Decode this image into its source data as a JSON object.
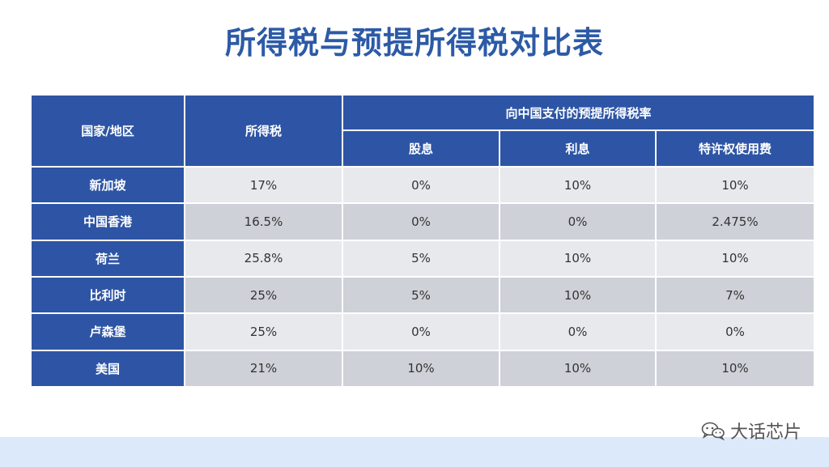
{
  "title": "所得税与预提所得税对比表",
  "table": {
    "header": {
      "region": "国家/地区",
      "income_tax": "所得税",
      "withholding_group": "向中国支付的预提所得税率",
      "dividend": "股息",
      "interest": "利息",
      "royalty": "特许权使用费"
    },
    "rows": [
      {
        "region": "新加坡",
        "income_tax": "17%",
        "dividend": "0%",
        "interest": "10%",
        "royalty": "10%"
      },
      {
        "region": "中国香港",
        "income_tax": "16.5%",
        "dividend": "0%",
        "interest": "0%",
        "royalty": "2.475%"
      },
      {
        "region": "荷兰",
        "income_tax": "25.8%",
        "dividend": "5%",
        "interest": "10%",
        "royalty": "10%"
      },
      {
        "region": "比利时",
        "income_tax": "25%",
        "dividend": "5%",
        "interest": "10%",
        "royalty": "7%"
      },
      {
        "region": "卢森堡",
        "income_tax": "25%",
        "dividend": "0%",
        "interest": "0%",
        "royalty": "0%"
      },
      {
        "region": "美国",
        "income_tax": "21%",
        "dividend": "10%",
        "interest": "10%",
        "royalty": "10%"
      }
    ]
  },
  "watermark": {
    "text": "大话芯片",
    "icon": "wechat-icon"
  }
}
